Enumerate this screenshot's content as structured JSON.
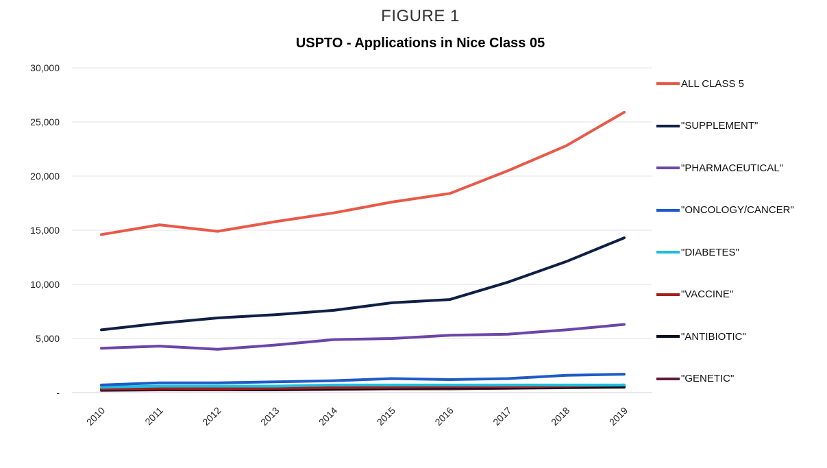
{
  "figure_label": "FIGURE 1",
  "chart_data": {
    "type": "line",
    "title": "USPTO - Applications in Nice Class 05",
    "xlabel": "",
    "ylabel": "",
    "ylim": [
      0,
      30000
    ],
    "yticks": [
      0,
      5000,
      10000,
      15000,
      20000,
      25000,
      30000
    ],
    "ytick_labels": [
      "-",
      "5,000",
      "10,000",
      "15,000",
      "20,000",
      "25,000",
      "30,000"
    ],
    "categories": [
      "2010",
      "2011",
      "2012",
      "2013",
      "2014",
      "2015",
      "2016",
      "2017",
      "2018",
      "2019"
    ],
    "grid": true,
    "legend_position": "right",
    "series": [
      {
        "name": "ALL CLASS 5",
        "color": "#E8594A",
        "values": [
          14600,
          15500,
          14900,
          15800,
          16600,
          17600,
          18400,
          20500,
          22800,
          25900
        ]
      },
      {
        "name": "\"SUPPLEMENT\"",
        "color": "#0F1F45",
        "values": [
          5800,
          6400,
          6900,
          7200,
          7600,
          8300,
          8600,
          10200,
          12100,
          14300
        ]
      },
      {
        "name": "\"PHARMACEUTICAL\"",
        "color": "#6B45A8",
        "values": [
          4100,
          4300,
          4000,
          4400,
          4900,
          5000,
          5300,
          5400,
          5800,
          6300
        ]
      },
      {
        "name": "\"ONCOLOGY/CANCER\"",
        "color": "#1E5BC6",
        "values": [
          700,
          900,
          900,
          1000,
          1100,
          1300,
          1200,
          1300,
          1600,
          1700
        ]
      },
      {
        "name": "\"DIABETES\"",
        "color": "#1CC0DE",
        "values": [
          500,
          600,
          600,
          600,
          700,
          700,
          700,
          700,
          700,
          700
        ]
      },
      {
        "name": "\"VACCINE\"",
        "color": "#A31F1F",
        "values": [
          350,
          400,
          350,
          400,
          450,
          500,
          550,
          550,
          600,
          700
        ]
      },
      {
        "name": "\"ANTIBIOTIC\"",
        "color": "#0A0F1E",
        "values": [
          300,
          350,
          300,
          300,
          350,
          400,
          450,
          450,
          500,
          550
        ]
      },
      {
        "name": "\"GENETIC\"",
        "color": "#5E1C3A",
        "values": [
          200,
          250,
          250,
          250,
          300,
          350,
          350,
          400,
          450,
          500
        ]
      }
    ]
  }
}
